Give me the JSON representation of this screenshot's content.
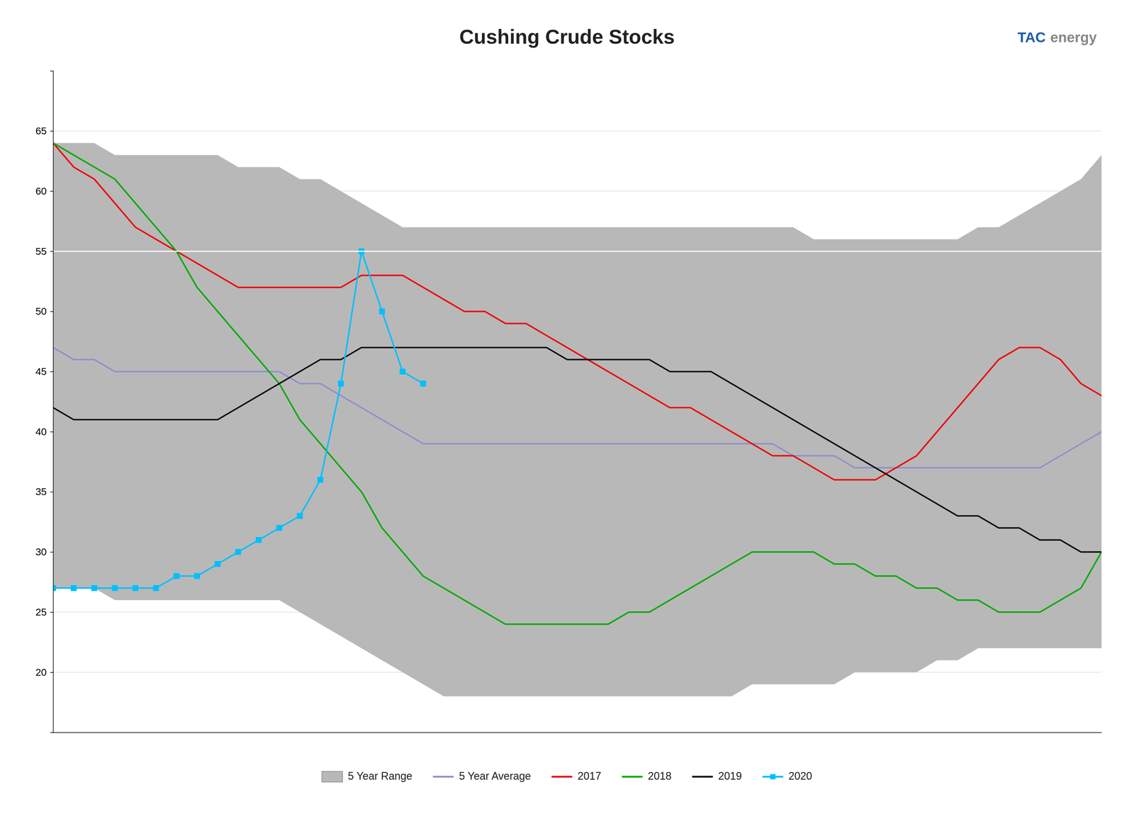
{
  "chart_data": {
    "type": "line",
    "title": "Cushing Crude Stocks",
    "x": [
      0,
      1,
      2,
      3,
      4,
      5,
      6,
      7,
      8,
      9,
      10,
      11,
      12,
      13,
      14,
      15,
      16,
      17,
      18,
      19,
      20,
      21,
      22,
      23,
      24,
      25,
      26,
      27,
      28,
      29,
      30,
      31,
      32,
      33,
      34,
      35,
      36,
      37,
      38,
      39,
      40,
      41,
      42,
      43,
      44,
      45,
      46,
      47,
      48,
      49,
      50,
      51
    ],
    "xlim": [
      0,
      51
    ],
    "ylim": [
      15,
      70
    ],
    "yticks": [
      20,
      25,
      30,
      35,
      40,
      45,
      50,
      55,
      60,
      65
    ],
    "grid": true,
    "legend": "bottom",
    "tick_labels": "y",
    "series": [
      {
        "name": "5 Year Range",
        "type": "area",
        "color": "#b8b8b8",
        "lower": [
          27,
          27,
          27,
          26,
          26,
          26,
          26,
          26,
          26,
          26,
          26,
          26,
          25,
          24,
          23,
          22,
          21,
          20,
          19,
          18,
          18,
          18,
          18,
          18,
          18,
          18,
          18,
          18,
          18,
          18,
          18,
          18,
          18,
          18,
          19,
          19,
          19,
          19,
          19,
          20,
          20,
          20,
          20,
          21,
          21,
          22,
          22,
          22,
          22,
          22,
          22,
          22
        ],
        "upper": [
          64,
          64,
          64,
          63,
          63,
          63,
          63,
          63,
          63,
          62,
          62,
          62,
          61,
          61,
          60,
          59,
          58,
          57,
          57,
          57,
          57,
          57,
          57,
          57,
          57,
          57,
          57,
          57,
          57,
          57,
          57,
          57,
          57,
          57,
          57,
          57,
          57,
          56,
          56,
          56,
          56,
          56,
          56,
          56,
          56,
          57,
          57,
          58,
          59,
          60,
          61,
          63
        ]
      },
      {
        "name": "5 Year Average",
        "type": "line",
        "color": "#9090cc",
        "values": [
          47,
          46,
          46,
          45,
          45,
          45,
          45,
          45,
          45,
          45,
          45,
          45,
          44,
          44,
          43,
          42,
          41,
          40,
          39,
          39,
          39,
          39,
          39,
          39,
          39,
          39,
          39,
          39,
          39,
          39,
          39,
          39,
          39,
          39,
          39,
          39,
          38,
          38,
          38,
          37,
          37,
          37,
          37,
          37,
          37,
          37,
          37,
          37,
          37,
          38,
          39,
          40
        ]
      },
      {
        "name": "2017",
        "type": "line",
        "color": "#ee0000",
        "values": [
          64,
          62,
          61,
          59,
          57,
          56,
          55,
          54,
          53,
          52,
          52,
          52,
          52,
          52,
          52,
          53,
          53,
          53,
          52,
          51,
          50,
          50,
          49,
          49,
          48,
          47,
          46,
          45,
          44,
          43,
          42,
          42,
          41,
          40,
          39,
          38,
          38,
          37,
          36,
          36,
          36,
          37,
          38,
          40,
          42,
          44,
          46,
          47,
          47,
          46,
          44,
          43
        ]
      },
      {
        "name": "2018",
        "type": "line",
        "color": "#00aa00",
        "values": [
          64,
          63,
          62,
          61,
          59,
          57,
          55,
          52,
          50,
          48,
          46,
          44,
          41,
          39,
          37,
          35,
          32,
          30,
          28,
          27,
          26,
          25,
          24,
          24,
          24,
          24,
          24,
          24,
          25,
          25,
          26,
          27,
          28,
          29,
          30,
          30,
          30,
          30,
          29,
          29,
          28,
          28,
          27,
          27,
          26,
          26,
          25,
          25,
          25,
          26,
          27,
          30
        ]
      },
      {
        "name": "2019",
        "type": "line",
        "color": "#111111",
        "values": [
          42,
          41,
          41,
          41,
          41,
          41,
          41,
          41,
          41,
          42,
          43,
          44,
          45,
          46,
          46,
          47,
          47,
          47,
          47,
          47,
          47,
          47,
          47,
          47,
          47,
          46,
          46,
          46,
          46,
          46,
          45,
          45,
          45,
          44,
          43,
          42,
          41,
          40,
          39,
          38,
          37,
          36,
          35,
          34,
          33,
          33,
          32,
          32,
          31,
          31,
          30,
          30
        ]
      },
      {
        "name": "2020",
        "type": "line",
        "color": "#00bfff",
        "marker": "square",
        "x": [
          0,
          1,
          2,
          3,
          4,
          5,
          6,
          7,
          8,
          9,
          10,
          11,
          12,
          13,
          14,
          15,
          16,
          17,
          18
        ],
        "values": [
          27,
          27,
          27,
          27,
          27,
          27,
          28,
          28,
          29,
          30,
          31,
          32,
          33,
          36,
          44,
          55,
          50,
          45,
          44
        ]
      }
    ],
    "annotations": [
      {
        "text": "TAC",
        "color": "#1a5fa8"
      },
      {
        "text": "energy",
        "color": "#888888"
      },
      {
        "y": 55,
        "color": "#ffffff"
      }
    ]
  }
}
